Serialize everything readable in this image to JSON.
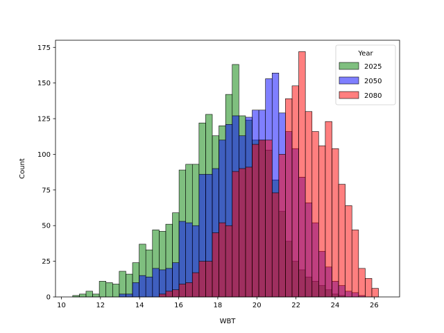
{
  "chart_data": {
    "type": "bar",
    "title": "",
    "xlabel": "WBT",
    "ylabel": "Count",
    "xlim": [
      9.7,
      27.3
    ],
    "ylim": [
      0,
      180
    ],
    "xticks": [
      10,
      12,
      14,
      16,
      18,
      20,
      22,
      24,
      26
    ],
    "yticks": [
      0,
      25,
      50,
      75,
      100,
      125,
      150,
      175
    ],
    "grid": false,
    "bin_start": 10.24,
    "bin_width": 0.34,
    "legend": {
      "title": "Year",
      "placement": "top-right"
    },
    "series": [
      {
        "name": "2025",
        "color": "#008000",
        "values": [
          0,
          1,
          2,
          4,
          2,
          11,
          10,
          9,
          18,
          16,
          24,
          37,
          33,
          47,
          46,
          51,
          59,
          89,
          93,
          93,
          122,
          128,
          113,
          120,
          142,
          163,
          127,
          124,
          110,
          110,
          103,
          82,
          60,
          39,
          25,
          19,
          14,
          11,
          8,
          5,
          2,
          1,
          0,
          0,
          0,
          0,
          0
        ]
      },
      {
        "name": "2050",
        "color": "#0000ff",
        "values": [
          0,
          0,
          0,
          0,
          0,
          0,
          0,
          0,
          2,
          2,
          10,
          15,
          14,
          20,
          19,
          20,
          24,
          53,
          52,
          50,
          86,
          86,
          90,
          110,
          121,
          127,
          113,
          126,
          131,
          131,
          153,
          157,
          129,
          116,
          104,
          84,
          66,
          52,
          32,
          21,
          11,
          8,
          4,
          3,
          1,
          0,
          0
        ]
      },
      {
        "name": "2080",
        "color": "#ff0000",
        "values": [
          0,
          0,
          0,
          0,
          0,
          0,
          0,
          0,
          0,
          0,
          0,
          0,
          0,
          0,
          2,
          4,
          5,
          9,
          10,
          17,
          25,
          25,
          45,
          52,
          50,
          88,
          90,
          91,
          107,
          110,
          110,
          73,
          100,
          139,
          148,
          172,
          130,
          116,
          106,
          123,
          104,
          79,
          64,
          47,
          20,
          13,
          6
        ]
      }
    ]
  }
}
